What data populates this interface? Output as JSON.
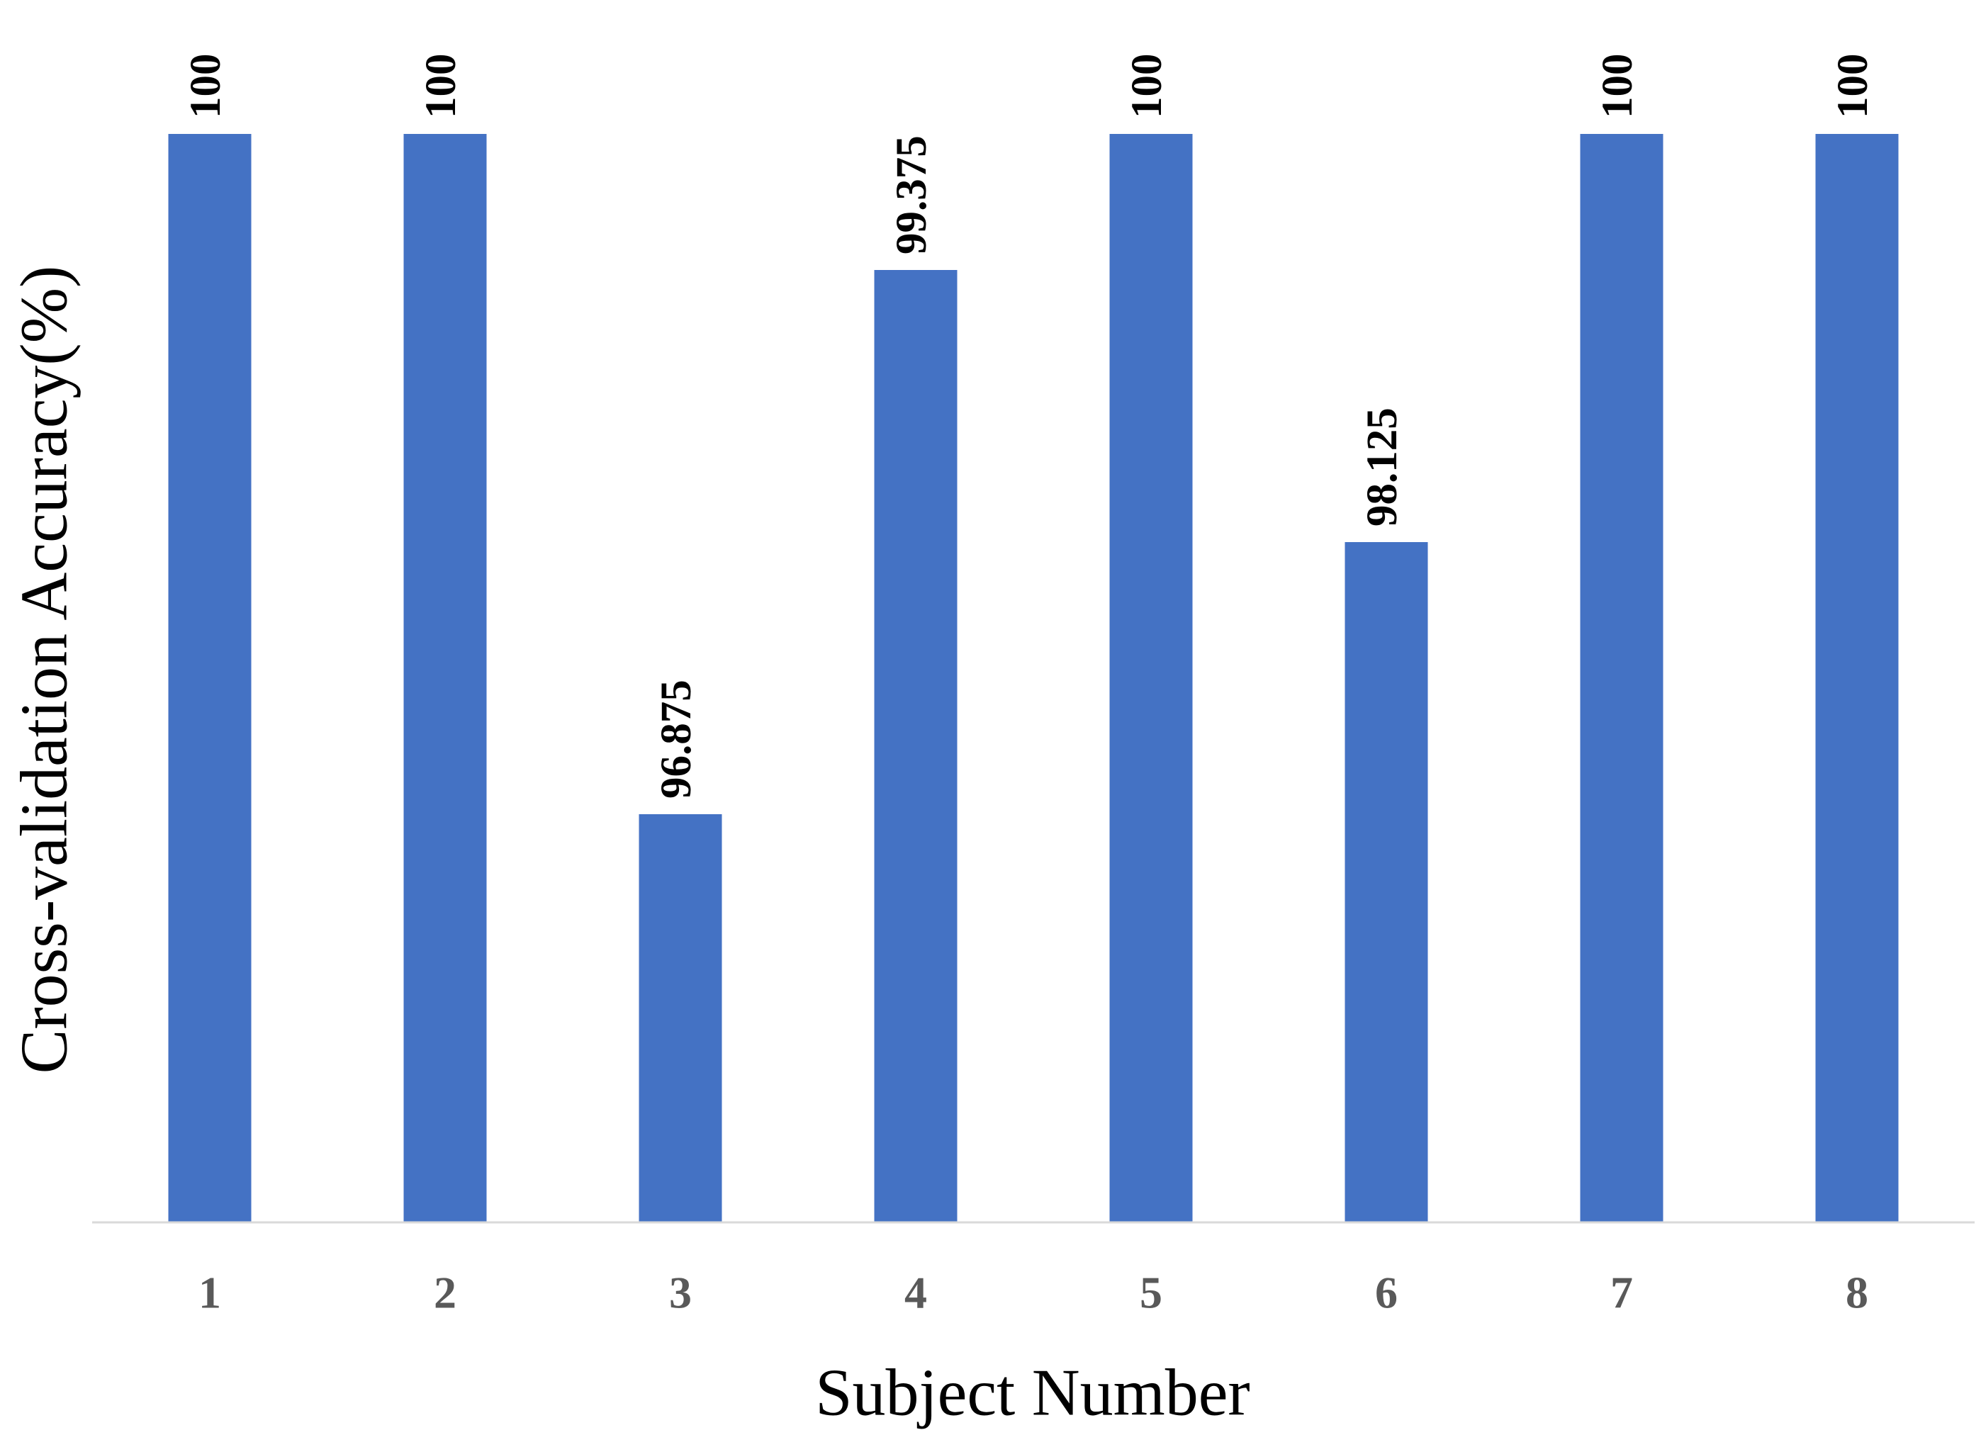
{
  "chart_data": {
    "type": "bar",
    "x_label": "Subject Number",
    "y_label": "Cross-validation Accuracy(%)",
    "categories": [
      "1",
      "2",
      "3",
      "4",
      "5",
      "6",
      "7",
      "8"
    ],
    "values": [
      100,
      100,
      96.875,
      99.375,
      100,
      98.125,
      100,
      100
    ],
    "color": "#4472c4",
    "ylim": [
      95,
      100
    ],
    "grid": false
  }
}
